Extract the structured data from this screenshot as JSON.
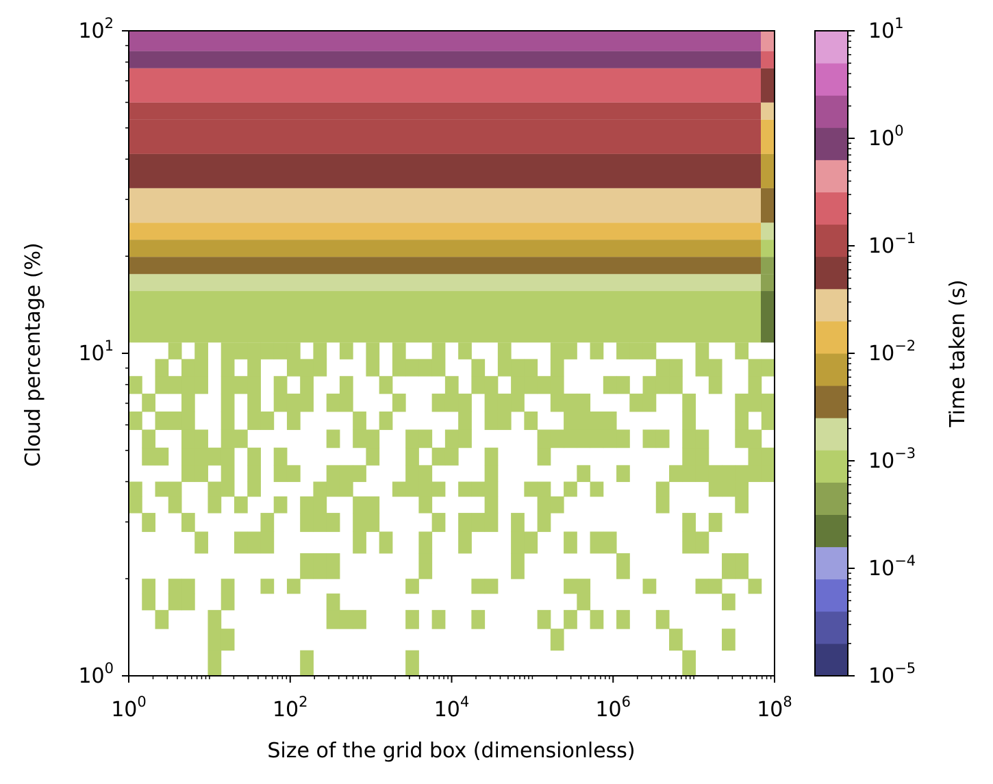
{
  "chart_data": {
    "type": "heatmap",
    "title": "",
    "xlabel": "Size of the grid box (dimensionless)",
    "ylabel": "Cloud percentage (%)",
    "colorbar_label": "Time taken (s)",
    "x_scale": "log",
    "y_scale": "log",
    "colorbar_scale": "log",
    "xlim": [
      1,
      100000000
    ],
    "ylim": [
      1,
      100
    ],
    "clim": [
      1e-05,
      10
    ],
    "x_ticks": [
      {
        "value": 1,
        "base": "10",
        "exp": "0"
      },
      {
        "value": 100,
        "base": "10",
        "exp": "2"
      },
      {
        "value": 10000,
        "base": "10",
        "exp": "4"
      },
      {
        "value": 1000000,
        "base": "10",
        "exp": "6"
      },
      {
        "value": 100000000,
        "base": "10",
        "exp": "8"
      }
    ],
    "y_ticks": [
      {
        "value": 1,
        "base": "10",
        "exp": "0"
      },
      {
        "value": 10,
        "base": "10",
        "exp": "1"
      },
      {
        "value": 100,
        "base": "10",
        "exp": "2"
      }
    ],
    "colorbar_ticks": [
      {
        "value": 1e-05,
        "base": "10",
        "exp": "−5"
      },
      {
        "value": 0.0001,
        "base": "10",
        "exp": "−4"
      },
      {
        "value": 0.001,
        "base": "10",
        "exp": "−3"
      },
      {
        "value": 0.01,
        "base": "10",
        "exp": "−2"
      },
      {
        "value": 0.1,
        "base": "10",
        "exp": "−1"
      },
      {
        "value": 1,
        "base": "10",
        "exp": "0"
      },
      {
        "value": 10,
        "base": "10",
        "exp": "1"
      }
    ],
    "colormap": [
      "#393b79",
      "#5254a3",
      "#6b6ecf",
      "#9c9ede",
      "#637939",
      "#8ca252",
      "#b5cf6b",
      "#cedb9c",
      "#8c6d31",
      "#bd9e39",
      "#e7ba52",
      "#e7cb94",
      "#843c39",
      "#ad494a",
      "#d6616b",
      "#e7969c",
      "#7b4173",
      "#a55194",
      "#ce6dbd",
      "#de9ed6"
    ],
    "cloud_bins_pct": [
      1.0,
      1.2,
      1.4,
      1.6,
      1.8,
      2.0,
      2.4,
      2.8,
      3.2,
      3.6,
      4.0,
      4.5,
      5.1,
      5.8,
      6.6,
      7.5,
      8.5,
      9.6,
      10.8,
      12.2,
      13.8,
      15.6,
      17.6,
      19.9,
      22.5,
      25.4,
      28.7,
      32.5,
      36.7,
      41.5,
      46.9,
      53.0,
      59.9,
      67.7,
      76.5,
      86.5,
      97.7
    ],
    "uncertain_rows_note": "",
    "row_level_bands": [
      {
        "y_from": 86.5,
        "y_to": 100,
        "time_s": 2.0
      },
      {
        "y_from": 76.5,
        "y_to": 86.5,
        "time_s": 1.0
      },
      {
        "y_from": 59.9,
        "y_to": 76.5,
        "time_s": 0.3
      },
      {
        "y_from": 53.0,
        "y_to": 59.9,
        "time_s": 0.15
      },
      {
        "y_from": 41.5,
        "y_to": 53.0,
        "time_s": 0.08
      },
      {
        "y_from": 32.5,
        "y_to": 41.5,
        "time_s": 0.04
      },
      {
        "y_from": 25.4,
        "y_to": 32.5,
        "time_s": 0.02
      },
      {
        "y_from": 22.5,
        "y_to": 25.4,
        "time_s": 0.012
      },
      {
        "y_from": 19.9,
        "y_to": 22.5,
        "time_s": 0.006
      },
      {
        "y_from": 17.6,
        "y_to": 19.9,
        "time_s": 0.003
      },
      {
        "y_from": 15.6,
        "y_to": 17.6,
        "time_s": 0.002
      },
      {
        "y_from": 10.8,
        "y_to": 15.6,
        "time_s": 0.001
      },
      {
        "y_from": 1.0,
        "y_to": 10.8,
        "time_s": 0.0008
      }
    ]
  }
}
